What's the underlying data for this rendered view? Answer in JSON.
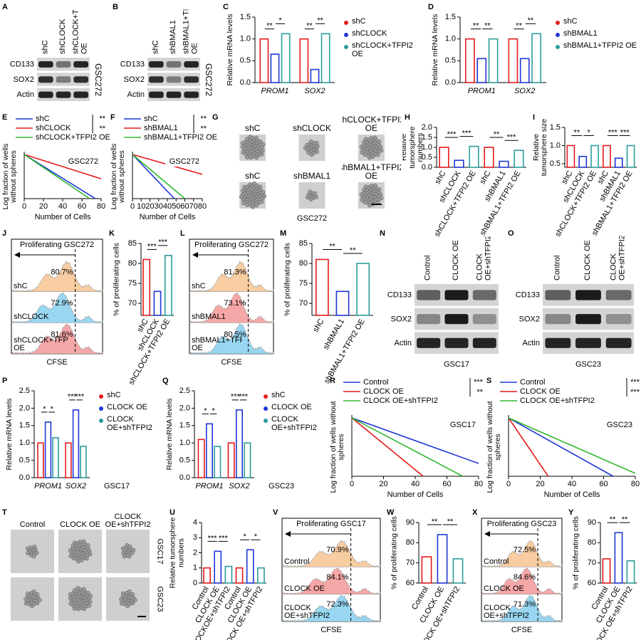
{
  "chart_data": [
    {
      "letter": "A",
      "type": "blot",
      "lanes": [
        "shC",
        "shCLOCK",
        "shCLOCK+TFPI2 OE"
      ],
      "rows": [
        "CD133",
        "SOX2",
        "Actin"
      ],
      "cell_line": "GSC272"
    },
    {
      "letter": "B",
      "type": "blot",
      "lanes": [
        "shC",
        "shBMAL1",
        "shBMAL1+TFPI2 OE"
      ],
      "rows": [
        "CD133",
        "SOX2",
        "Actin"
      ],
      "cell_line": "GSC272"
    },
    {
      "letter": "C",
      "type": "grouped_bar",
      "ylabel": "Relative mRNA levels",
      "categories": [
        "PROM1",
        "SOX2"
      ],
      "series": [
        {
          "name": "shC",
          "color": "#e41a1c",
          "values": [
            1.0,
            1.0
          ]
        },
        {
          "name": "shCLOCK",
          "color": "#1f36d6",
          "values": [
            0.65,
            0.3
          ]
        },
        {
          "name": "shCLOCK+TFPI2 OE",
          "color": "#2b9c9c",
          "values": [
            1.12,
            1.12
          ]
        }
      ],
      "ylim": [
        0,
        1.5
      ],
      "yticks": [
        {
          "value": 0,
          "label": "0.0"
        },
        {
          "value": 0.5,
          "label": "0.5"
        },
        {
          "value": 1,
          "label": "1.0"
        },
        {
          "value": 1.5,
          "label": "1.5"
        }
      ],
      "sig": [
        "**",
        "*",
        "**",
        "**"
      ]
    },
    {
      "letter": "D",
      "type": "grouped_bar",
      "ylabel": "Relative mRNA levels",
      "categories": [
        "PROM1",
        "SOX2"
      ],
      "series": [
        {
          "name": "shC",
          "color": "#e41a1c",
          "values": [
            1.0,
            1.0
          ]
        },
        {
          "name": "shBMAL1",
          "color": "#1f36d6",
          "values": [
            0.55,
            0.55
          ]
        },
        {
          "name": "shBMAL1+TFPI2 OE",
          "color": "#2b9c9c",
          "values": [
            1.0,
            1.12
          ]
        }
      ],
      "ylim": [
        0,
        1.5
      ],
      "yticks": [
        {
          "value": 0,
          "label": "0.0"
        },
        {
          "value": 0.5,
          "label": "0.5"
        },
        {
          "value": 1,
          "label": "1.0"
        },
        {
          "value": 1.5,
          "label": "1.5"
        }
      ],
      "sig": [
        "**",
        "**",
        "**",
        "**"
      ]
    },
    {
      "letter": "E",
      "type": "line",
      "xlabel": "Number of Cells",
      "ylabel": "Log fraction of wells without spheres",
      "label": "GSC272",
      "series": [
        {
          "name": "shC",
          "color": "#1f36d6",
          "x": [
            0,
            74
          ],
          "values": [
            0,
            -1
          ]
        },
        {
          "name": "shCLOCK",
          "color": "#e41a1c",
          "x": [
            0,
            80
          ],
          "values": [
            0,
            -0.55
          ]
        },
        {
          "name": "shCLOCK+TFPI2 OE",
          "color": "#2eb82e",
          "x": [
            0,
            68
          ],
          "values": [
            0,
            -1
          ]
        }
      ],
      "xlim": [
        0,
        80
      ],
      "xticks": [
        0,
        20,
        40,
        60,
        80
      ],
      "ylim": [
        -1,
        0
      ],
      "sig": [
        "**",
        "**"
      ]
    },
    {
      "letter": "F",
      "type": "line",
      "xlabel": "Number of Cells",
      "ylabel": "Log fraction of wells without spheres",
      "label": "GSC272",
      "series": [
        {
          "name": "shC",
          "color": "#1f36d6",
          "x": [
            0,
            48
          ],
          "values": [
            0,
            -1
          ]
        },
        {
          "name": "shBMAL1",
          "color": "#e41a1c",
          "x": [
            0,
            80
          ],
          "values": [
            0,
            -0.45
          ]
        },
        {
          "name": "shBMAL1+TFPI2 OE",
          "color": "#2eb82e",
          "x": [
            0,
            60
          ],
          "values": [
            0,
            -1
          ]
        }
      ],
      "xlim": [
        0,
        80
      ],
      "xticks": [
        0,
        10,
        20,
        30,
        40,
        50,
        60,
        70,
        80
      ],
      "ylim": [
        -1,
        0
      ],
      "sig": [
        "**",
        "**"
      ]
    },
    {
      "letter": "G",
      "type": "image",
      "labels": [
        "shC",
        "shCLOCK",
        "shCLOCK+TFPI2 OE",
        "shC",
        "shBMAL1",
        "shBMAL1+TFPI2 OE"
      ],
      "footer": "GSC272"
    },
    {
      "letter": "H",
      "type": "bar",
      "ylabel": "Relative tumorsphere numbers",
      "categories": [
        "shC",
        "shCLOCK",
        "shCLOCK+TFPI2 OE",
        "shC",
        "shBMAL1",
        "shBMAL1+TFPI2 OE"
      ],
      "values": [
        1.0,
        0.35,
        1.05,
        1.0,
        0.3,
        0.85
      ],
      "colors": [
        "#e41a1c",
        "#1f36d6",
        "#2b9c9c",
        "#e41a1c",
        "#1f36d6",
        "#2b9c9c"
      ],
      "ylim": [
        0,
        2
      ],
      "yticks": [
        {
          "value": 0,
          "label": "0.0"
        },
        {
          "value": 0.5,
          "label": "0.5"
        },
        {
          "value": 1,
          "label": "1.0"
        },
        {
          "value": 1.5,
          "label": "1.5"
        },
        {
          "value": 2,
          "label": "2.0"
        }
      ],
      "sig": [
        "***",
        "***",
        "**",
        "***"
      ]
    },
    {
      "letter": "I",
      "type": "bar",
      "ylabel": "Relative tumorsphere size",
      "categories": [
        "shC",
        "shCLOCK",
        "shCLOCK+TFPI2 OE",
        "shC",
        "shBMAL1",
        "shBMAL1+TFPI2 OE"
      ],
      "values": [
        1.0,
        0.7,
        1.0,
        1.0,
        0.65,
        1.0
      ],
      "colors": [
        "#e41a1c",
        "#1f36d6",
        "#2b9c9c",
        "#e41a1c",
        "#1f36d6",
        "#2b9c9c"
      ],
      "ylim": [
        0.4,
        1.5
      ],
      "yticks": [
        {
          "value": 0.5,
          "label": "0.5"
        },
        {
          "value": 1,
          "label": "1.0"
        },
        {
          "value": 1.5,
          "label": "1.5"
        }
      ],
      "sig": [
        "**",
        "*",
        "***",
        "***"
      ]
    },
    {
      "letter": "J",
      "type": "flow",
      "title": "Proliferating GSC272",
      "xlabel": "CFSE",
      "names": [
        "shC",
        "shCLOCK",
        "shCLOCK+TFPI2 OE"
      ],
      "values": [
        80.7,
        72.9,
        81.6
      ],
      "value_labels": [
        "80.7%",
        "72.9%",
        "81.6%"
      ],
      "colors": [
        "#f7c99a",
        "#8fd3f0",
        "#f5a0a0"
      ]
    },
    {
      "letter": "K",
      "type": "bar",
      "ylabel": "% of proliferating cells",
      "categories": [
        "shC",
        "shCLOCK",
        "shCLOCK+TFPI2 OE"
      ],
      "values": [
        81,
        73,
        82
      ],
      "colors": [
        "#e41a1c",
        "#1f36d6",
        "#2b9c9c"
      ],
      "ylim": [
        67,
        85
      ],
      "yticks": [
        70,
        75,
        80,
        85
      ],
      "sig": [
        "***",
        "***"
      ]
    },
    {
      "letter": "L",
      "type": "flow",
      "title": "Proliferating GSC272",
      "xlabel": "CFSE",
      "names": [
        "shC",
        "shBMAL1",
        "shBMAL1+TFPI2 OE"
      ],
      "values": [
        81.3,
        73.1,
        80.5
      ],
      "value_labels": [
        "81.3%",
        "73.1%",
        "80.5%"
      ],
      "colors": [
        "#f7c99a",
        "#f5a0a0",
        "#8fd3f0"
      ]
    },
    {
      "letter": "M",
      "type": "bar",
      "ylabel": "% of proliferating cells",
      "categories": [
        "shC",
        "shBMAL1",
        "shBMAL1+TFPI2 OE"
      ],
      "values": [
        81,
        73,
        80
      ],
      "colors": [
        "#e41a1c",
        "#1f36d6",
        "#2b9c9c"
      ],
      "ylim": [
        67,
        85
      ],
      "yticks": [
        70,
        75,
        80,
        85
      ],
      "sig": [
        "**",
        "**"
      ]
    },
    {
      "letter": "N",
      "type": "blot",
      "lanes": [
        "Control",
        "CLOCK OE",
        "CLOCK OE+shTFPI2"
      ],
      "rows": [
        "CD133",
        "SOX2",
        "Actin"
      ],
      "cell_line": "GSC17"
    },
    {
      "letter": "O",
      "type": "blot",
      "lanes": [
        "Control",
        "CLOCK OE",
        "CLOCK OE+shTFPI2"
      ],
      "rows": [
        "CD133",
        "SOX2",
        "Actin"
      ],
      "cell_line": "GSC23"
    },
    {
      "letter": "P",
      "type": "grouped_bar",
      "ylabel": "Relative mRNA levels",
      "categories": [
        "PROM1",
        "SOX2"
      ],
      "annotation": "GSC17",
      "series": [
        {
          "name": "shC",
          "color": "#e41a1c",
          "values": [
            1.0,
            1.0
          ]
        },
        {
          "name": "CLOCK OE",
          "color": "#1f36d6",
          "values": [
            1.6,
            1.95
          ]
        },
        {
          "name": "CLOCK OE+shTFPI2",
          "color": "#2b9c9c",
          "values": [
            1.15,
            0.9
          ]
        }
      ],
      "ylim": [
        0,
        2.5
      ],
      "yticks": [
        {
          "value": 0,
          "label": "0.0"
        },
        {
          "value": 0.5,
          "label": "0.5"
        },
        {
          "value": 1,
          "label": "1.0"
        },
        {
          "value": 1.5,
          "label": "1.5"
        },
        {
          "value": 2,
          "label": "2.0"
        },
        {
          "value": 2.5,
          "label": "2.5"
        }
      ],
      "sig": [
        "*",
        "*",
        "***",
        "***"
      ]
    },
    {
      "letter": "Q",
      "type": "grouped_bar",
      "ylabel": "Relative mRNA levels",
      "categories": [
        "PROM1",
        "SOX2"
      ],
      "annotation": "GSC23",
      "series": [
        {
          "name": "shC",
          "color": "#e41a1c",
          "values": [
            1.1,
            1.0
          ]
        },
        {
          "name": "CLOCK OE",
          "color": "#1f36d6",
          "values": [
            1.55,
            1.95
          ]
        },
        {
          "name": "CLOCK OE+shTFPI2",
          "color": "#2b9c9c",
          "values": [
            0.9,
            1.0
          ]
        }
      ],
      "ylim": [
        0,
        2.5
      ],
      "yticks": [
        {
          "value": 0,
          "label": "0.0"
        },
        {
          "value": 0.5,
          "label": "0.5"
        },
        {
          "value": 1,
          "label": "1.0"
        },
        {
          "value": 1.5,
          "label": "1.5"
        },
        {
          "value": 2,
          "label": "2.0"
        },
        {
          "value": 2.5,
          "label": "2.5"
        }
      ],
      "sig": [
        "*",
        "*",
        "***",
        "***"
      ]
    },
    {
      "letter": "R",
      "type": "line",
      "xlabel": "Number of Cells",
      "ylabel": "Log fraction of wells without spheres",
      "label": "GSC17",
      "series": [
        {
          "name": "Control",
          "color": "#1f36d6",
          "x": [
            0,
            80
          ],
          "values": [
            0,
            -0.78
          ]
        },
        {
          "name": "CLOCK OE",
          "color": "#e41a1c",
          "x": [
            0,
            45
          ],
          "values": [
            0,
            -1
          ]
        },
        {
          "name": "CLOCK OE+shTFPI2",
          "color": "#2eb82e",
          "x": [
            0,
            70
          ],
          "values": [
            0,
            -1
          ]
        }
      ],
      "xlim": [
        0,
        80
      ],
      "xticks": [
        0,
        20,
        40,
        60,
        80
      ],
      "ylim": [
        -1,
        0
      ],
      "sig": [
        "***",
        "**"
      ]
    },
    {
      "letter": "S",
      "type": "line",
      "xlabel": "Number of Cells",
      "ylabel": "Log fraction of wells without spheres",
      "label": "GSC23",
      "series": [
        {
          "name": "Control",
          "color": "#1f36d6",
          "x": [
            0,
            66
          ],
          "values": [
            0,
            -1
          ]
        },
        {
          "name": "CLOCK OE",
          "color": "#e41a1c",
          "x": [
            0,
            25
          ],
          "values": [
            0,
            -1
          ]
        },
        {
          "name": "CLOCK OE+shTFPI2",
          "color": "#2eb82e",
          "x": [
            0,
            80
          ],
          "values": [
            0,
            -0.95
          ]
        }
      ],
      "xlim": [
        0,
        80
      ],
      "xticks": [
        0,
        20,
        40,
        60,
        80
      ],
      "ylim": [
        -1,
        0
      ],
      "sig": [
        "***",
        "***"
      ]
    },
    {
      "letter": "T",
      "type": "image",
      "columns": [
        "Control",
        "CLOCK OE",
        "CLOCK OE+shTFPI2"
      ],
      "rows": [
        "GSC17",
        "GSC23"
      ]
    },
    {
      "letter": "U",
      "type": "bar",
      "ylabel": "Relative tumorsphere numbers",
      "categories": [
        "Control",
        "CLOCK OE",
        "CLOCKOE+shTFPI2",
        "Control",
        "CLOCK OE",
        "CLOCK OE+shTFPI2"
      ],
      "values": [
        1.0,
        2.1,
        1.1,
        1.0,
        2.2,
        1.0
      ],
      "colors": [
        "#e41a1c",
        "#1f36d6",
        "#2b9c9c",
        "#e41a1c",
        "#1f36d6",
        "#2b9c9c"
      ],
      "ylim": [
        0,
        4
      ],
      "yticks": [
        0,
        1,
        2,
        3,
        4
      ],
      "sig": [
        "***",
        "***",
        "*",
        "*"
      ]
    },
    {
      "letter": "V",
      "type": "flow",
      "title": "Proliferating GSC17",
      "xlabel": "CFSE",
      "names": [
        "Control",
        "CLOCK OE",
        "CLOCK OE+shTFPI2"
      ],
      "values": [
        70.9,
        84.1,
        72.3
      ],
      "value_labels": [
        "70.9%",
        "84.1%",
        "72.3%"
      ],
      "colors": [
        "#f7c99a",
        "#f5a0a0",
        "#8fd3f0"
      ]
    },
    {
      "letter": "W",
      "type": "bar",
      "ylabel": "% of proliferating cells",
      "categories": [
        "Control",
        "CLOCK OE",
        "CLOCK OE+shTFPI2"
      ],
      "values": [
        73,
        84,
        72
      ],
      "colors": [
        "#e41a1c",
        "#1f36d6",
        "#2b9c9c"
      ],
      "ylim": [
        60,
        90
      ],
      "yticks": [
        60,
        70,
        80,
        90
      ],
      "sig": [
        "**",
        "**"
      ]
    },
    {
      "letter": "X",
      "type": "flow",
      "title": "Proliferating GSC23",
      "xlabel": "CFSE",
      "names": [
        "Control",
        "CLOCK OE",
        "CLOCK OE+shTFPI2"
      ],
      "values": [
        72.5,
        84.6,
        71.3
      ],
      "value_labels": [
        "72.5%",
        "84.6%",
        "71.3%"
      ],
      "colors": [
        "#f7c99a",
        "#f5a0a0",
        "#8fd3f0"
      ]
    },
    {
      "letter": "Y",
      "type": "bar",
      "ylabel": "% of proliferating cells",
      "categories": [
        "Control",
        "CLOCK OE",
        "CLOCK OE+shTFPI2"
      ],
      "values": [
        72,
        85,
        71
      ],
      "colors": [
        "#e41a1c",
        "#1f36d6",
        "#2b9c9c"
      ],
      "ylim": [
        60,
        90
      ],
      "yticks": [
        60,
        70,
        80,
        90
      ],
      "sig": [
        "**",
        "**"
      ]
    }
  ]
}
